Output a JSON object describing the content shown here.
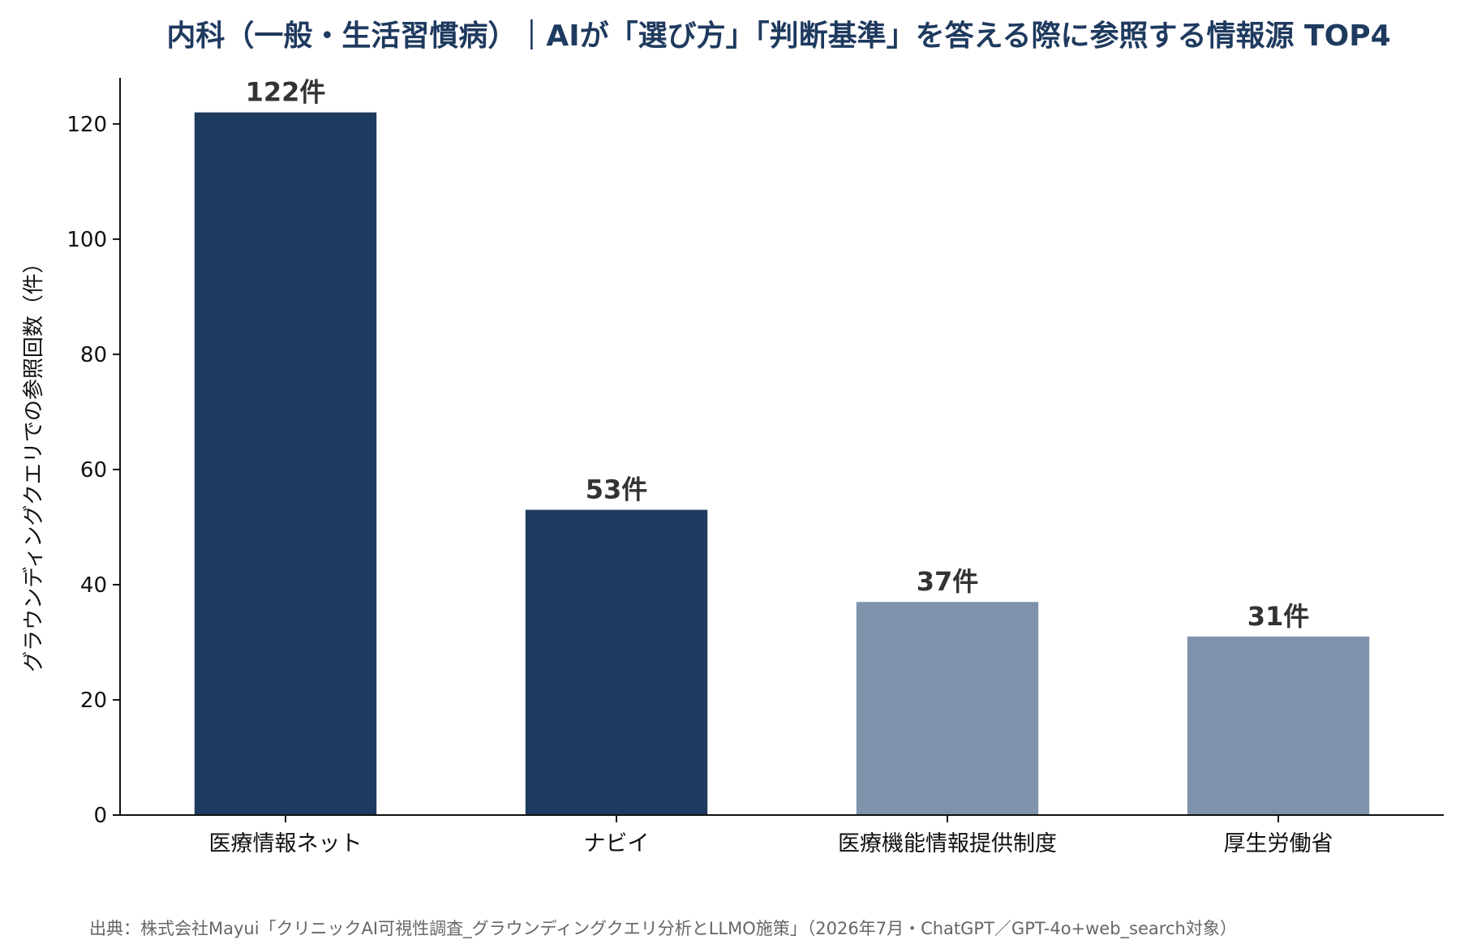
{
  "chart_data": {
    "type": "bar",
    "title": "内科（一般・生活習慣病）｜AIが「選び方」「判断基準」を答える際に参照する情報源 TOP4",
    "xlabel": "",
    "ylabel": "グラウンディングクエリでの参照回数（件）",
    "categories": [
      "医療情報ネット",
      "ナビイ",
      "医療機能情報提供制度",
      "厚生労働省"
    ],
    "values": [
      122,
      53,
      37,
      31
    ],
    "value_labels": [
      "122件",
      "53件",
      "37件",
      "31件"
    ],
    "ylim": [
      0,
      128
    ],
    "yticks": [
      0,
      20,
      40,
      60,
      80,
      100,
      120
    ],
    "ytick_labels": [
      "0",
      "20",
      "40",
      "60",
      "80",
      "100",
      "120"
    ],
    "grid": false,
    "legend": "none",
    "bar_colors": [
      "#1f3a5f",
      "#1f3a5f",
      "#7e93ab",
      "#7e93ab"
    ],
    "title_color": "#1f3a5f",
    "source": "出典：株式会社Mayui「クリニックAI可視性調査_グラウンディングクエリ分析とLLMO施策」（2026年7月・ChatGPT／GPT-4o+web_search対象）"
  }
}
